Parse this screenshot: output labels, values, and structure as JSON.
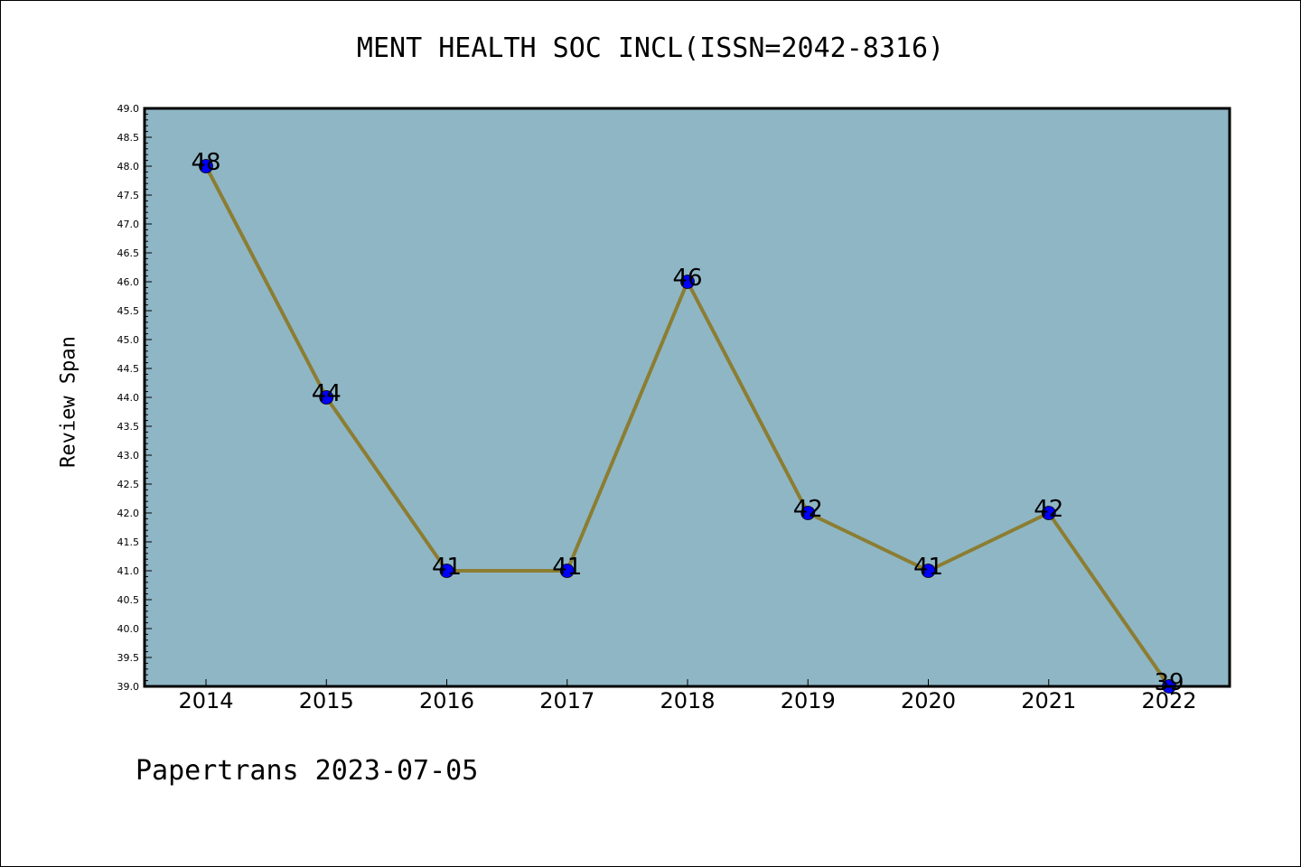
{
  "chart_data": {
    "type": "line",
    "title": "MENT HEALTH SOC INCL(ISSN=2042-8316)",
    "xlabel": "",
    "ylabel": "Review Span",
    "categories": [
      "2014",
      "2015",
      "2016",
      "2017",
      "2018",
      "2019",
      "2020",
      "2021",
      "2022"
    ],
    "series": [
      {
        "values": [
          48,
          44,
          41,
          41,
          46,
          42,
          41,
          42,
          39
        ],
        "data_labels": [
          "48",
          "44",
          "41",
          "41",
          "46",
          "42",
          "41",
          "42",
          "39"
        ]
      }
    ],
    "ylim": [
      39.0,
      49.0
    ],
    "y_ticks": [
      "39.0",
      "39.5",
      "40.0",
      "40.5",
      "41.0",
      "41.5",
      "42.0",
      "42.5",
      "43.0",
      "43.5",
      "44.0",
      "44.5",
      "45.0",
      "45.5",
      "46.0",
      "46.5",
      "47.0",
      "47.5",
      "48.0",
      "48.5",
      "49.0"
    ],
    "grid": false,
    "legend": "none",
    "colors": {
      "plot_background": "#8fb6c5",
      "line": "#8b7d32",
      "marker": "#0000ff",
      "axes": "#000000"
    }
  },
  "footer": {
    "note": "Papertrans 2023-07-05"
  }
}
